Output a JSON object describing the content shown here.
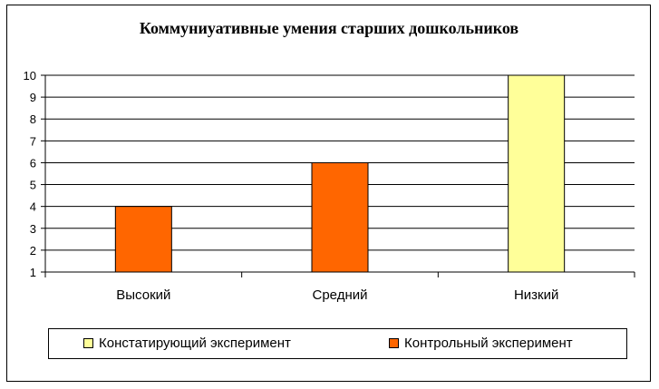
{
  "chart_data": {
    "type": "bar",
    "title": "Коммуниуативные умения старших дошкольников",
    "categories": [
      "Высокий",
      "Средний",
      "Низкий"
    ],
    "series": [
      {
        "name": "Констатирующий эксперимент",
        "color": "#FFFF99",
        "values": [
          null,
          null,
          10
        ]
      },
      {
        "name": "Контрольный эксперимент",
        "color": "#FF6600",
        "values": [
          4,
          6,
          null
        ]
      }
    ],
    "ylim": [
      1,
      10
    ],
    "yticks": [
      "1",
      "2",
      "3",
      "4",
      "5",
      "6",
      "7",
      "8",
      "9",
      "10"
    ],
    "grid": true,
    "legend_position": "bottom"
  }
}
